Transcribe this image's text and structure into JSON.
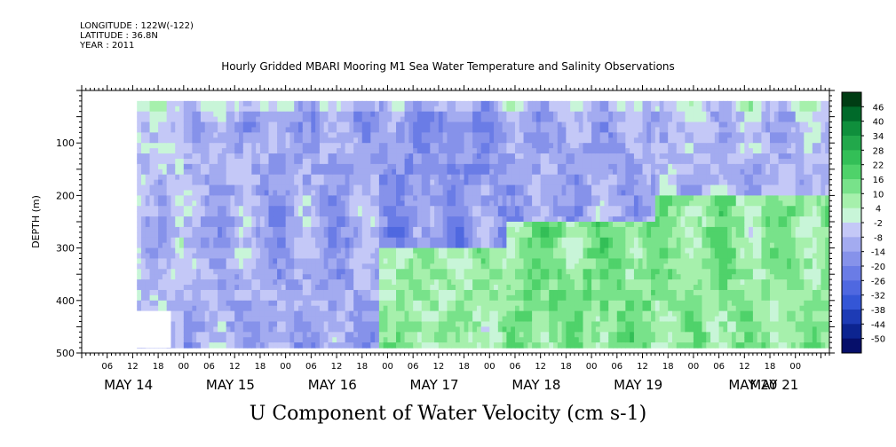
{
  "header": {
    "longitude": "LONGITUDE : 122W(-122)",
    "latitude": "LATITUDE : 36.8N",
    "year": "YEAR : 2011",
    "title": "Hourly Gridded MBARI Mooring M1 Sea Water Temperature and Salinity Observations"
  },
  "footer": {
    "variable_title": "U Component of Water Velocity (cm s-1)"
  },
  "chart_data": {
    "type": "heatmap",
    "title": "Hourly Gridded MBARI Mooring M1 Sea Water Temperature and Salinity Observations",
    "subtitle": "U Component of Water Velocity (cm s-1)",
    "ylabel": "DEPTH (m)",
    "xlabel": "",
    "y_reversed": true,
    "ylim": [
      0,
      500
    ],
    "x_range_hours": [
      0,
      176
    ],
    "y_ticks": [
      100,
      200,
      300,
      400,
      500
    ],
    "x_hour_ticks": [
      "06",
      "12",
      "18",
      "00",
      "06",
      "12",
      "18",
      "00",
      "06",
      "12",
      "18",
      "00",
      "06",
      "12",
      "18",
      "00",
      "06",
      "12",
      "18",
      "00",
      "06",
      "12",
      "18",
      "00",
      "06",
      "12",
      "18",
      "00"
    ],
    "x_day_labels": [
      "MAY 14",
      "MAY 15",
      "MAY 16",
      "MAY 17",
      "MAY 18",
      "MAY 19",
      "MAY 20",
      "MAY 21"
    ],
    "colorbar": {
      "labels": [
        "46",
        "40",
        "34",
        "28",
        "22",
        "16",
        "10",
        "4",
        "-2",
        "-8",
        "-14",
        "-20",
        "-26",
        "-32",
        "-38",
        "-44",
        "-50"
      ],
      "colors": [
        "#003d14",
        "#006a2a",
        "#0f8f3c",
        "#22a84b",
        "#33bf57",
        "#4fd26a",
        "#78e28a",
        "#a6f0ac",
        "#c8f5d8",
        "#c4c8f7",
        "#a3abf0",
        "#8692ea",
        "#6a7ce6",
        "#4f68e0",
        "#3456d6",
        "#1d3bb5",
        "#0c2490",
        "#060f6a"
      ]
    },
    "data": {
      "description": "U velocity by time (hours since 00Z May 14) and depth (m)",
      "time_start_hour": 13,
      "time_end_hour": 176,
      "depth_start": 20,
      "depth_end": 490,
      "regimes": [
        {
          "time": [
            13,
            24
          ],
          "depth": [
            20,
            490
          ],
          "u_mean": -6
        },
        {
          "time": [
            24,
            40
          ],
          "depth": [
            20,
            490
          ],
          "u_mean": -10
        },
        {
          "time": [
            40,
            70
          ],
          "depth": [
            20,
            490
          ],
          "u_mean": -12
        },
        {
          "time": [
            70,
            100
          ],
          "depth": [
            20,
            300
          ],
          "u_mean": -16
        },
        {
          "time": [
            70,
            100
          ],
          "depth": [
            300,
            490
          ],
          "u_mean": 8
        },
        {
          "time": [
            100,
            135
          ],
          "depth": [
            20,
            250
          ],
          "u_mean": -12
        },
        {
          "time": [
            100,
            135
          ],
          "depth": [
            250,
            490
          ],
          "u_mean": 12
        },
        {
          "time": [
            135,
            176
          ],
          "depth": [
            20,
            200
          ],
          "u_mean": -8
        },
        {
          "time": [
            135,
            176
          ],
          "depth": [
            200,
            490
          ],
          "u_mean": 10
        }
      ]
    }
  }
}
